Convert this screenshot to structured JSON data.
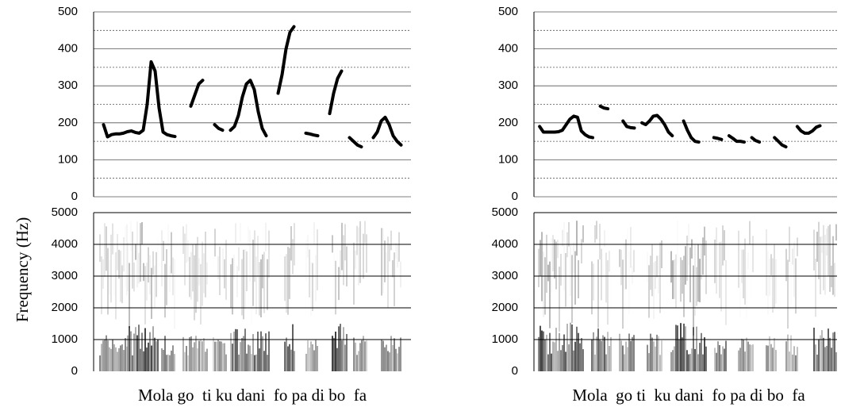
{
  "chart_data": [
    {
      "type": "line",
      "ylim": [
        0,
        500
      ],
      "yticks": [
        0,
        100,
        200,
        300,
        400,
        500
      ],
      "minor_grid": [
        50,
        150,
        250,
        350,
        450
      ],
      "categories": [
        null,
        null,
        null,
        null,
        null,
        null,
        null,
        null,
        null,
        null,
        null,
        null,
        null,
        null,
        null,
        null,
        null,
        null,
        null,
        null,
        null,
        null,
        null,
        null,
        null,
        null,
        null,
        null,
        null,
        null,
        null,
        null,
        null,
        null,
        null,
        null,
        null,
        null,
        null,
        null,
        null,
        null,
        null,
        null,
        null,
        null,
        null,
        null,
        null,
        null,
        null,
        null,
        null,
        null,
        null,
        null,
        null,
        null,
        null,
        null,
        null,
        null,
        null,
        null,
        null,
        null,
        null,
        null,
        null,
        null,
        null,
        null,
        null,
        null,
        null,
        null,
        null,
        null,
        null,
        null
      ],
      "series": [
        {
          "color": "#000000",
          "values": [
            null,
            null,
            195,
            162,
            168,
            170,
            170,
            172,
            176,
            178,
            174,
            172,
            180,
            250,
            365,
            340,
            240,
            175,
            168,
            165,
            163,
            null,
            null,
            null,
            245,
            275,
            305,
            315,
            null,
            null,
            195,
            185,
            180,
            null,
            180,
            190,
            220,
            270,
            305,
            315,
            290,
            230,
            185,
            165,
            null,
            null,
            280,
            330,
            400,
            445,
            460,
            null,
            null,
            172,
            170,
            167,
            165,
            null,
            null,
            225,
            280,
            320,
            340,
            null,
            160,
            150,
            140,
            135,
            null,
            null,
            160,
            175,
            205,
            215,
            195,
            165,
            150,
            140,
            null,
            null
          ]
        }
      ]
    },
    {
      "type": "line",
      "ylim": [
        0,
        500
      ],
      "yticks": [
        0,
        100,
        200,
        300,
        400,
        500
      ],
      "minor_grid": [
        50,
        150,
        250,
        350,
        450
      ],
      "categories": [
        null,
        null,
        null,
        null,
        null,
        null,
        null,
        null,
        null,
        null,
        null,
        null,
        null,
        null,
        null,
        null,
        null,
        null,
        null,
        null,
        null,
        null,
        null,
        null,
        null,
        null,
        null,
        null,
        null,
        null,
        null,
        null,
        null,
        null,
        null,
        null,
        null,
        null,
        null,
        null,
        null,
        null,
        null,
        null,
        null,
        null,
        null,
        null,
        null,
        null,
        null,
        null,
        null,
        null,
        null,
        null,
        null,
        null,
        null,
        null,
        null,
        null,
        null,
        null,
        null,
        null,
        null,
        null,
        null,
        null,
        null,
        null,
        null,
        null,
        null,
        null,
        null,
        null,
        null,
        null
      ],
      "series": [
        {
          "color": "#000000",
          "values": [
            null,
            190,
            175,
            175,
            175,
            175,
            176,
            180,
            195,
            210,
            218,
            215,
            178,
            168,
            162,
            160,
            null,
            245,
            240,
            238,
            null,
            null,
            null,
            205,
            190,
            187,
            186,
            null,
            200,
            195,
            205,
            218,
            220,
            210,
            195,
            175,
            165,
            null,
            null,
            205,
            180,
            160,
            150,
            148,
            null,
            null,
            null,
            160,
            158,
            155,
            null,
            165,
            158,
            150,
            150,
            148,
            null,
            160,
            152,
            148,
            null,
            null,
            null,
            160,
            150,
            140,
            135,
            null,
            null,
            190,
            178,
            172,
            172,
            178,
            188,
            192,
            null,
            null,
            null,
            null
          ]
        }
      ]
    },
    {
      "type": "spectrogram",
      "ylim": [
        0,
        5000
      ],
      "yticks": [
        0,
        1000,
        2000,
        3000,
        4000,
        5000
      ],
      "ylabel": "Frequency (Hz)",
      "xlabel": "Mola go  ti ku dani  fo pa di bo  fa"
    },
    {
      "type": "spectrogram",
      "ylim": [
        0,
        5000
      ],
      "yticks": [
        0,
        1000,
        2000,
        3000,
        4000,
        5000
      ],
      "xlabel": "Mola  go ti  ku dani  fo pa di bo  fa"
    }
  ]
}
